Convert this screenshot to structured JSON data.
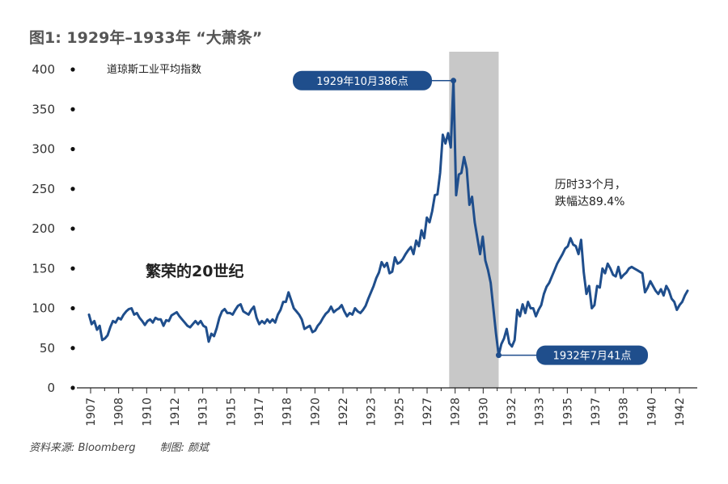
{
  "title": "图1: 1929年–1933年 “大萧条”",
  "footer": {
    "source": "资料来源: Bloomberg",
    "credit": "制图: 颜斌"
  },
  "chart_data": {
    "type": "line",
    "series_label": "道琼斯工业平均指数",
    "yticks": [
      0,
      50,
      100,
      150,
      200,
      250,
      300,
      350,
      400
    ],
    "ylim": [
      0,
      400
    ],
    "xtick_labels": [
      "1907",
      "1908",
      "1910",
      "1912",
      "1913",
      "1915",
      "1917",
      "1918",
      "1920",
      "1922",
      "1923",
      "1925",
      "1927",
      "1928",
      "1930",
      "1932",
      "1933",
      "1935",
      "1937",
      "1938",
      "1940",
      "1942"
    ],
    "series": [
      {
        "color": "#1f4e8c",
        "values": [
          92,
          80,
          84,
          73,
          78,
          60,
          62,
          66,
          76,
          84,
          82,
          88,
          86,
          92,
          96,
          99,
          100,
          92,
          94,
          88,
          84,
          79,
          84,
          86,
          82,
          88,
          86,
          86,
          78,
          85,
          84,
          91,
          93,
          95,
          90,
          86,
          82,
          78,
          76,
          80,
          84,
          80,
          84,
          78,
          76,
          58,
          68,
          65,
          75,
          88,
          96,
          99,
          94,
          94,
          92,
          98,
          103,
          105,
          96,
          94,
          92,
          98,
          102,
          88,
          80,
          84,
          81,
          86,
          82,
          86,
          82,
          92,
          98,
          108,
          108,
          120,
          110,
          100,
          96,
          92,
          86,
          74,
          76,
          78,
          70,
          72,
          78,
          82,
          88,
          93,
          96,
          102,
          95,
          98,
          100,
          104,
          96,
          90,
          94,
          92,
          100,
          96,
          94,
          98,
          103,
          112,
          120,
          128,
          138,
          145,
          158,
          152,
          157,
          144,
          146,
          164,
          156,
          158,
          162,
          168,
          173,
          177,
          168,
          185,
          178,
          198,
          188,
          214,
          208,
          222,
          242,
          243,
          270,
          318,
          307,
          320,
          302,
          386,
          242,
          268,
          270,
          290,
          275,
          230,
          240,
          208,
          188,
          168,
          190,
          160,
          148,
          132,
          100,
          68,
          41,
          55,
          62,
          74,
          56,
          52,
          60,
          98,
          90,
          105,
          94,
          108,
          100,
          100,
          90,
          98,
          104,
          118,
          127,
          132,
          140,
          148,
          156,
          162,
          168,
          175,
          178,
          188,
          180,
          178,
          168,
          186,
          145,
          118,
          128,
          100,
          104,
          128,
          126,
          150,
          144,
          156,
          150,
          142,
          140,
          152,
          138,
          142,
          145,
          150,
          152,
          150,
          148,
          146,
          144,
          120,
          126,
          134,
          128,
          122,
          118,
          124,
          116,
          128,
          122,
          112,
          108,
          98,
          104,
          108,
          116,
          122
        ]
      }
    ],
    "shaded_region": {
      "start_index": 136,
      "end_index": 154
    },
    "peak": {
      "index": 137,
      "value": 386,
      "label": "1929年10月386点"
    },
    "trough": {
      "index": 154,
      "value": 41,
      "label": "1932年7月41点"
    },
    "annotations": [
      "历时33个月，",
      "跌幅达89.4%",
      "繁荣的20世纪"
    ]
  }
}
